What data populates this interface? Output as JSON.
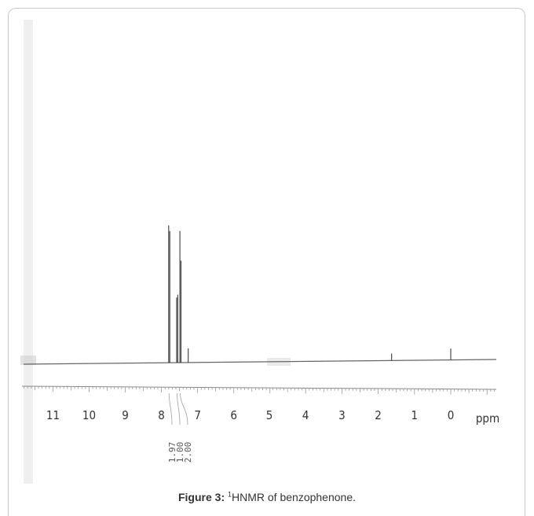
{
  "chart_data": {
    "type": "line",
    "xunit_label": "ppm",
    "xlim": [
      11.8,
      -1.2
    ],
    "x_ticks": [
      11,
      10,
      9,
      8,
      7,
      6,
      5,
      4,
      3,
      2,
      1,
      0
    ],
    "peaks": [
      {
        "ppm": 7.8,
        "height": 0.97
      },
      {
        "ppm": 7.77,
        "height": 0.93
      },
      {
        "ppm": 7.58,
        "height": 0.46
      },
      {
        "ppm": 7.55,
        "height": 0.48
      },
      {
        "ppm": 7.49,
        "height": 0.93
      },
      {
        "ppm": 7.46,
        "height": 0.72
      },
      {
        "ppm": 7.26,
        "height": 0.1
      },
      {
        "ppm": 1.63,
        "height": 0.05
      },
      {
        "ppm": 0.0,
        "height": 0.08
      }
    ],
    "integrals": [
      "1.97",
      "1.00",
      "2.00"
    ]
  },
  "caption": {
    "label": "Figure 3:",
    "sup": "1",
    "text": "HNMR of benzophenone."
  }
}
